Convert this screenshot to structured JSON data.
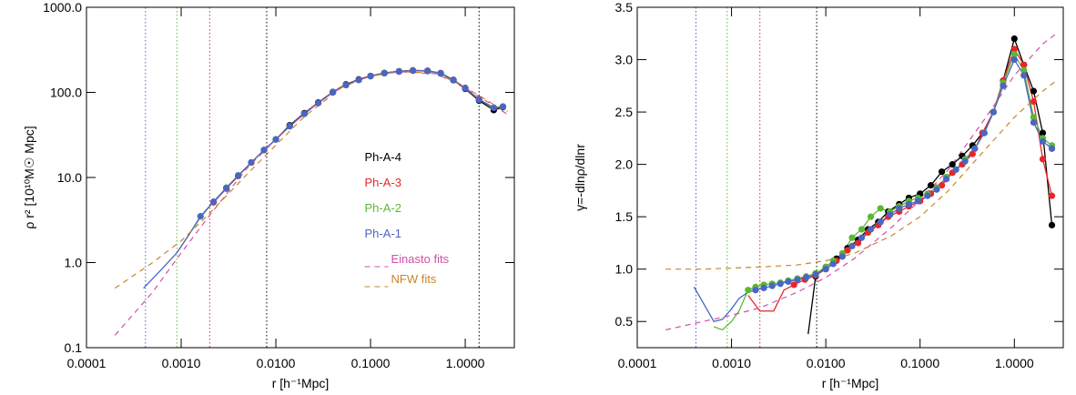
{
  "chart_data": [
    {
      "type": "line",
      "log_x": true,
      "log_y": true,
      "xlabel": "r [h⁻¹Mpc]",
      "ylabel": "ρ r² [10¹⁰M☉ Mpc]",
      "xlim": [
        0.0001,
        3.3
      ],
      "ylim": [
        0.1,
        1000
      ],
      "xticks": [
        {
          "value": 0.0001,
          "label": "0.0001"
        },
        {
          "value": 0.001,
          "label": "0.0010"
        },
        {
          "value": 0.01,
          "label": "0.0100"
        },
        {
          "value": 0.1,
          "label": "0.1000"
        },
        {
          "value": 1,
          "label": "1.0000"
        }
      ],
      "yticks": [
        {
          "value": 0.1,
          "label": "0.1"
        },
        {
          "value": 1,
          "label": "1.0"
        },
        {
          "value": 10,
          "label": "10.0"
        },
        {
          "value": 100,
          "label": "100.0"
        },
        {
          "value": 1000,
          "label": "1000.0"
        }
      ],
      "legend": "center-right",
      "vlines": [
        {
          "x": 1.4,
          "color": "#000000"
        }
      ],
      "series": [
        {
          "name": "Ph-A-4",
          "color": "#000000",
          "rconv": 0.008,
          "markers_from": 0.0075,
          "x": [
            0.0075,
            0.01,
            0.014,
            0.02,
            0.028,
            0.04,
            0.055,
            0.075,
            0.1,
            0.14,
            0.2,
            0.28,
            0.4,
            0.55,
            0.75,
            1.0,
            1.4,
            2.0,
            2.5
          ],
          "values": [
            21,
            28,
            41,
            57,
            76,
            101,
            124,
            142,
            156,
            169,
            177,
            181,
            179,
            167,
            139,
            110,
            80,
            62,
            67
          ]
        },
        {
          "name": "Ph-A-3",
          "color": "#e8262a",
          "rconv": 0.002,
          "markers_from": 0.0022,
          "x": [
            0.0022,
            0.003,
            0.004,
            0.0055,
            0.0075,
            0.01,
            0.014,
            0.02,
            0.028,
            0.04,
            0.055,
            0.075,
            0.1,
            0.14,
            0.2,
            0.28,
            0.4,
            0.55,
            0.75,
            1.0,
            1.4,
            2.0,
            2.5
          ],
          "values": [
            5.1,
            7.4,
            10.4,
            15,
            21,
            28,
            40,
            56,
            75,
            100,
            122,
            140,
            155,
            168,
            176,
            181,
            180,
            169,
            141,
            113,
            83,
            66,
            68
          ]
        },
        {
          "name": "Ph-A-2",
          "color": "#5cb832",
          "rconv": 0.0009,
          "markers_from": 0.003,
          "x": [
            0.0009,
            0.0012,
            0.0016,
            0.0022,
            0.003,
            0.004,
            0.0055,
            0.0075,
            0.01,
            0.014,
            0.02,
            0.028,
            0.04,
            0.055,
            0.075,
            0.1,
            0.14,
            0.2,
            0.28,
            0.4,
            0.55,
            0.75,
            1.0,
            1.4,
            2.0,
            2.5
          ],
          "values": [
            1.3,
            2.1,
            3.4,
            5.2,
            7.6,
            10.6,
            15,
            21,
            28,
            40,
            56,
            75,
            100,
            122,
            140,
            155,
            168,
            176,
            180,
            178,
            168,
            140,
            112,
            82,
            66,
            68
          ]
        },
        {
          "name": "Ph-A-1",
          "color": "#4a66c4",
          "rconv": 0.00042,
          "markers_from": 0.0016,
          "x": [
            0.0004,
            0.0006,
            0.0009,
            0.0012,
            0.0016,
            0.0022,
            0.003,
            0.004,
            0.0055,
            0.0075,
            0.01,
            0.014,
            0.02,
            0.028,
            0.04,
            0.055,
            0.075,
            0.1,
            0.14,
            0.2,
            0.28,
            0.4,
            0.55,
            0.75,
            1.0,
            1.4,
            2.0,
            2.5
          ],
          "values": [
            0.5,
            0.8,
            1.3,
            2.1,
            3.5,
            5.2,
            7.5,
            10.5,
            15,
            21,
            28,
            40,
            56,
            75,
            100,
            122,
            140,
            155,
            168,
            176,
            180,
            178,
            168,
            140,
            112,
            82,
            66,
            68
          ]
        },
        {
          "name": "Einasto fits",
          "color": "#d24fa8",
          "dash": true,
          "x": [
            0.0002,
            0.0005,
            0.001,
            0.002,
            0.005,
            0.01,
            0.02,
            0.05,
            0.1,
            0.2,
            0.5,
            1,
            2,
            2.8
          ],
          "values": [
            0.14,
            0.45,
            1.3,
            3.6,
            13,
            28,
            57,
            120,
            155,
            175,
            165,
            112,
            70,
            55
          ]
        },
        {
          "name": "NFW fits",
          "color": "#c8862a",
          "dash": true,
          "x": [
            0.0002,
            0.0005,
            0.001,
            0.002,
            0.005,
            0.01,
            0.02,
            0.05,
            0.1,
            0.2,
            0.5,
            1,
            2,
            2.8
          ],
          "values": [
            0.5,
            1.0,
            1.8,
            3.8,
            11,
            24,
            52,
            115,
            155,
            175,
            168,
            115,
            72,
            60
          ]
        }
      ]
    },
    {
      "type": "line",
      "log_x": true,
      "log_y": false,
      "xlabel": "r [h⁻¹Mpc]",
      "ylabel": "γ=-dlnρ/dlnr",
      "xlim": [
        0.0001,
        3.3
      ],
      "ylim": [
        0.25,
        3.5
      ],
      "xticks": [
        {
          "value": 0.0001,
          "label": "0.0001"
        },
        {
          "value": 0.001,
          "label": "0.0010"
        },
        {
          "value": 0.01,
          "label": "0.0100"
        },
        {
          "value": 0.1,
          "label": "0.1000"
        },
        {
          "value": 1,
          "label": "1.0000"
        }
      ],
      "yticks": [
        0.5,
        {
          "value": 1,
          "label": "1.0"
        },
        1.5,
        {
          "value": 2,
          "label": "2.0"
        },
        2.5,
        {
          "value": 3,
          "label": "3.0"
        },
        3.5
      ],
      "vlines": [],
      "series": [
        {
          "name": "Ph-A-4",
          "color": "#000000",
          "rconv": 0.008,
          "markers_from": 0.0078,
          "x": [
            0.0065,
            0.0078,
            0.01,
            0.013,
            0.017,
            0.022,
            0.028,
            0.036,
            0.046,
            0.06,
            0.076,
            0.1,
            0.13,
            0.17,
            0.22,
            0.28,
            0.36,
            0.46,
            0.6,
            0.76,
            1.0,
            1.26,
            1.6,
            2.0,
            2.5
          ],
          "values": [
            0.38,
            0.93,
            1.02,
            1.1,
            1.2,
            1.28,
            1.38,
            1.45,
            1.55,
            1.62,
            1.68,
            1.72,
            1.8,
            1.93,
            2.0,
            2.08,
            2.18,
            2.3,
            2.5,
            2.8,
            3.2,
            2.95,
            2.7,
            2.3,
            1.42
          ]
        },
        {
          "name": "Ph-A-3",
          "color": "#e8262a",
          "rconv": 0.002,
          "markers_from": 0.0046,
          "x": [
            0.0015,
            0.002,
            0.0028,
            0.0036,
            0.0046,
            0.006,
            0.0078,
            0.01,
            0.013,
            0.017,
            0.022,
            0.028,
            0.036,
            0.046,
            0.06,
            0.076,
            0.1,
            0.13,
            0.17,
            0.22,
            0.28,
            0.36,
            0.46,
            0.6,
            0.76,
            1.0,
            1.26,
            1.6,
            2.0,
            2.5
          ],
          "values": [
            0.75,
            0.6,
            0.6,
            0.8,
            0.85,
            0.9,
            0.94,
            1.0,
            1.08,
            1.18,
            1.25,
            1.35,
            1.42,
            1.5,
            1.55,
            1.6,
            1.65,
            1.72,
            1.8,
            1.92,
            2.0,
            2.1,
            2.3,
            2.5,
            2.8,
            3.1,
            2.95,
            2.6,
            2.05,
            1.7
          ]
        },
        {
          "name": "Ph-A-2",
          "color": "#5cb832",
          "rconv": 0.0009,
          "markers_from": 0.0015,
          "x": [
            0.00065,
            0.0008,
            0.001,
            0.0012,
            0.0015,
            0.0018,
            0.0022,
            0.0027,
            0.0033,
            0.004,
            0.005,
            0.0062,
            0.0078,
            0.01,
            0.012,
            0.015,
            0.019,
            0.024,
            0.03,
            0.038,
            0.048,
            0.06,
            0.076,
            0.095,
            0.12,
            0.15,
            0.19,
            0.24,
            0.3,
            0.38,
            0.48,
            0.6,
            0.76,
            1.0,
            1.26,
            1.6,
            2.0,
            2.5
          ],
          "values": [
            0.45,
            0.42,
            0.5,
            0.6,
            0.8,
            0.83,
            0.85,
            0.86,
            0.87,
            0.89,
            0.91,
            0.93,
            0.96,
            1.02,
            1.08,
            1.15,
            1.3,
            1.38,
            1.5,
            1.58,
            1.55,
            1.6,
            1.65,
            1.68,
            1.72,
            1.78,
            1.88,
            1.95,
            2.05,
            2.15,
            2.3,
            2.5,
            2.78,
            3.05,
            2.9,
            2.45,
            2.25,
            2.18
          ]
        },
        {
          "name": "Ph-A-1",
          "color": "#4a66c4",
          "rconv": 0.00042,
          "markers_from": 0.0018,
          "x": [
            0.0004,
            0.00065,
            0.0008,
            0.001,
            0.0012,
            0.0015,
            0.0018,
            0.0022,
            0.0027,
            0.0033,
            0.004,
            0.005,
            0.0062,
            0.0078,
            0.01,
            0.012,
            0.015,
            0.019,
            0.024,
            0.03,
            0.038,
            0.048,
            0.06,
            0.076,
            0.095,
            0.12,
            0.15,
            0.19,
            0.24,
            0.3,
            0.38,
            0.48,
            0.6,
            0.76,
            1.0,
            1.26,
            1.6,
            2.0,
            2.5
          ],
          "values": [
            0.83,
            0.5,
            0.52,
            0.62,
            0.72,
            0.78,
            0.8,
            0.82,
            0.84,
            0.86,
            0.88,
            0.9,
            0.92,
            0.95,
            1.0,
            1.05,
            1.12,
            1.22,
            1.3,
            1.38,
            1.45,
            1.52,
            1.58,
            1.62,
            1.65,
            1.7,
            1.76,
            1.86,
            1.95,
            2.03,
            2.15,
            2.3,
            2.5,
            2.75,
            3.0,
            2.85,
            2.4,
            2.22,
            2.15
          ]
        },
        {
          "name": "Einasto fits",
          "color": "#d24fa8",
          "dash": true,
          "x": [
            0.0002,
            0.0005,
            0.001,
            0.002,
            0.005,
            0.01,
            0.02,
            0.05,
            0.1,
            0.2,
            0.5,
            1,
            2,
            2.8
          ],
          "values": [
            0.42,
            0.5,
            0.56,
            0.63,
            0.78,
            0.92,
            1.1,
            1.4,
            1.66,
            1.95,
            2.45,
            2.85,
            3.15,
            3.25
          ]
        },
        {
          "name": "NFW fits",
          "color": "#c8862a",
          "dash": true,
          "x": [
            0.0002,
            0.0005,
            0.001,
            0.002,
            0.005,
            0.01,
            0.02,
            0.05,
            0.1,
            0.2,
            0.5,
            1,
            2,
            2.8
          ],
          "values": [
            1.0,
            1.0,
            1.01,
            1.02,
            1.04,
            1.08,
            1.15,
            1.32,
            1.5,
            1.75,
            2.15,
            2.45,
            2.7,
            2.8
          ]
        }
      ]
    }
  ]
}
